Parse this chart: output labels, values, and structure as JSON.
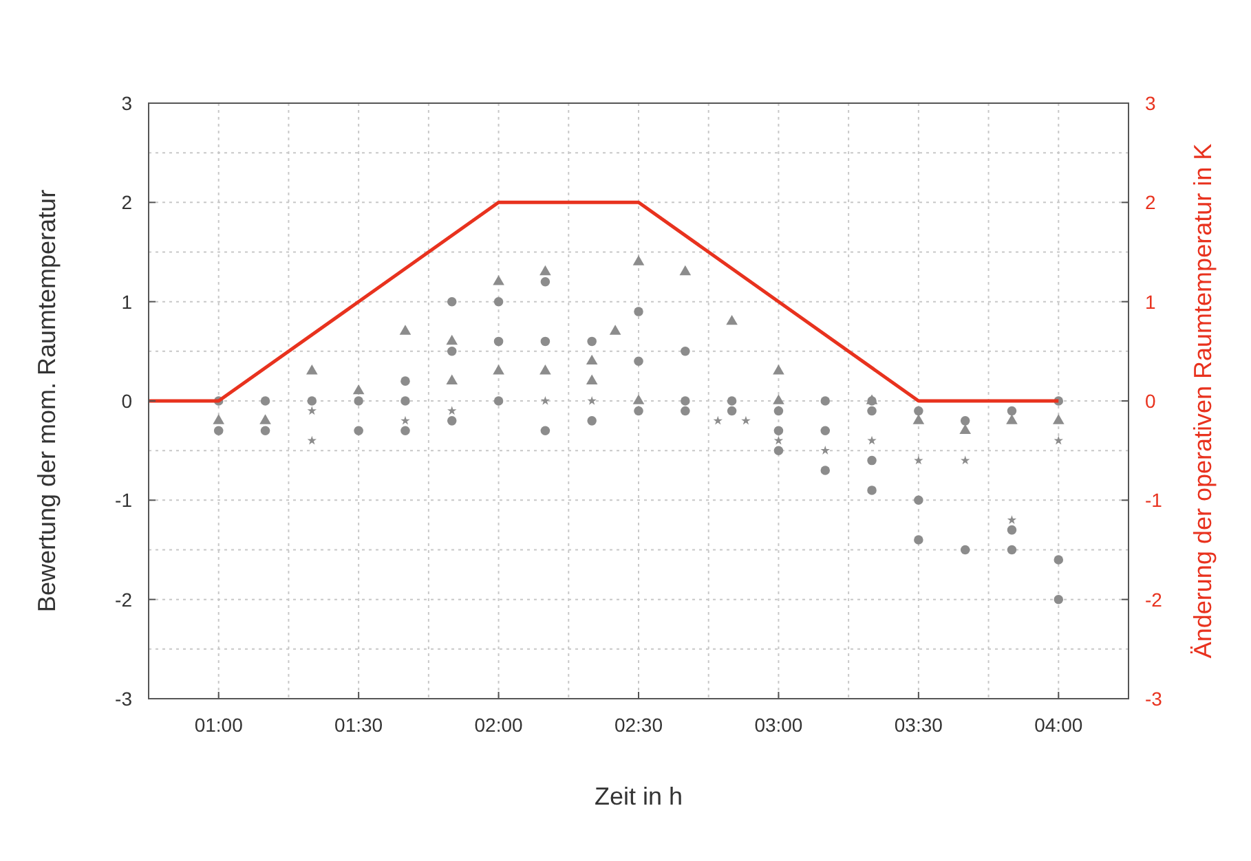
{
  "chart_data": {
    "type": "scatter",
    "xlabel": "Zeit in h",
    "ylabel": "Bewertung der mom. Raumtemperatur",
    "y2label": "Änderung der operativen Raumtemperatur in K",
    "xlim": [
      0.75,
      4.25
    ],
    "xticks": [
      {
        "value": 1,
        "label": "01:00"
      },
      {
        "value": 1.5,
        "label": "01:30"
      },
      {
        "value": 2,
        "label": "02:00"
      },
      {
        "value": 2.5,
        "label": "02:30"
      },
      {
        "value": 3,
        "label": "03:00"
      },
      {
        "value": 3.5,
        "label": "03:30"
      },
      {
        "value": 4,
        "label": "04:00"
      }
    ],
    "ylim": [
      -3,
      3
    ],
    "yticks": [
      -3,
      -2,
      -1,
      0,
      1,
      2,
      3
    ],
    "y2lim": [
      -3,
      3
    ],
    "y2ticks": [
      -3,
      -2,
      -1,
      0,
      1,
      2,
      3
    ],
    "grid": true,
    "series": [
      {
        "marker": "circle",
        "color": "#8c8c8c",
        "x": [
          1,
          1,
          1.1667,
          1.1667,
          1.3333,
          1.5,
          1.5,
          1.6667,
          1.6667,
          1.6667,
          1.8333,
          1.8333,
          1.8333,
          2,
          2,
          2,
          2.1667,
          2.1667,
          2.1667,
          2.3333,
          2.3333,
          2.5,
          2.5,
          2.5,
          2.6667,
          2.6667,
          2.6667,
          2.8333,
          2.8333,
          3,
          3,
          3,
          3.1667,
          3.1667,
          3.1667,
          3.3333,
          3.3333,
          3.3333,
          3.3333,
          3.5,
          3.5,
          3.5,
          3.6667,
          3.6667,
          3.8333,
          3.8333,
          3.8333,
          4,
          4,
          4
        ],
        "values": [
          0,
          -0.3,
          0,
          -0.3,
          0,
          0,
          -0.3,
          0.2,
          0,
          -0.3,
          1,
          0.5,
          -0.2,
          1,
          0.6,
          0,
          1.2,
          0.6,
          -0.3,
          0.6,
          -0.2,
          0.9,
          0.4,
          -0.1,
          0.5,
          0,
          -0.1,
          0,
          -0.1,
          -0.1,
          -0.3,
          -0.5,
          0,
          -0.3,
          -0.7,
          0,
          -0.1,
          -0.6,
          -0.9,
          -0.1,
          -1,
          -1.4,
          -0.2,
          -1.5,
          -0.1,
          -1.3,
          -1.5,
          0,
          -1.6,
          -2
        ]
      },
      {
        "marker": "triangle",
        "color": "#8c8c8c",
        "x": [
          1,
          1.1667,
          1.3333,
          1.5,
          1.6667,
          1.8333,
          2,
          2.1667,
          2.3333,
          2.4167,
          2.5,
          2.6667,
          2.8333,
          3,
          3.5,
          3.8333,
          1.8333,
          2,
          2.1667,
          2.3333,
          2.5,
          3,
          3.3333,
          3.6667,
          4
        ],
        "values": [
          -0.2,
          -0.2,
          0.3,
          0.1,
          0.7,
          0.6,
          1.2,
          1.3,
          0.2,
          0.7,
          1.4,
          1.3,
          0.8,
          0.3,
          -0.2,
          -0.2,
          0.2,
          0.3,
          0.3,
          0.4,
          0,
          0,
          0,
          -0.3,
          -0.2
        ]
      },
      {
        "marker": "star",
        "color": "#8c8c8c",
        "x": [
          1.3333,
          1.3333,
          1.6667,
          1.8333,
          2.1667,
          2.3333,
          2.7833,
          2.8833,
          3,
          3.1667,
          3.3333,
          3.5,
          3.6667,
          3.8333,
          4
        ],
        "values": [
          -0.1,
          -0.4,
          -0.2,
          -0.1,
          0,
          0,
          -0.2,
          -0.2,
          -0.4,
          -0.5,
          -0.4,
          -0.6,
          -0.6,
          -1.2,
          -0.4
        ]
      },
      {
        "type": "line",
        "axis": "y2",
        "marker": "none",
        "line_style": "solid",
        "color": "#e8321e",
        "x": [
          0.75,
          1,
          2,
          2.5,
          3.5,
          4
        ],
        "values": [
          0,
          0,
          2,
          2,
          0,
          0
        ]
      }
    ]
  }
}
